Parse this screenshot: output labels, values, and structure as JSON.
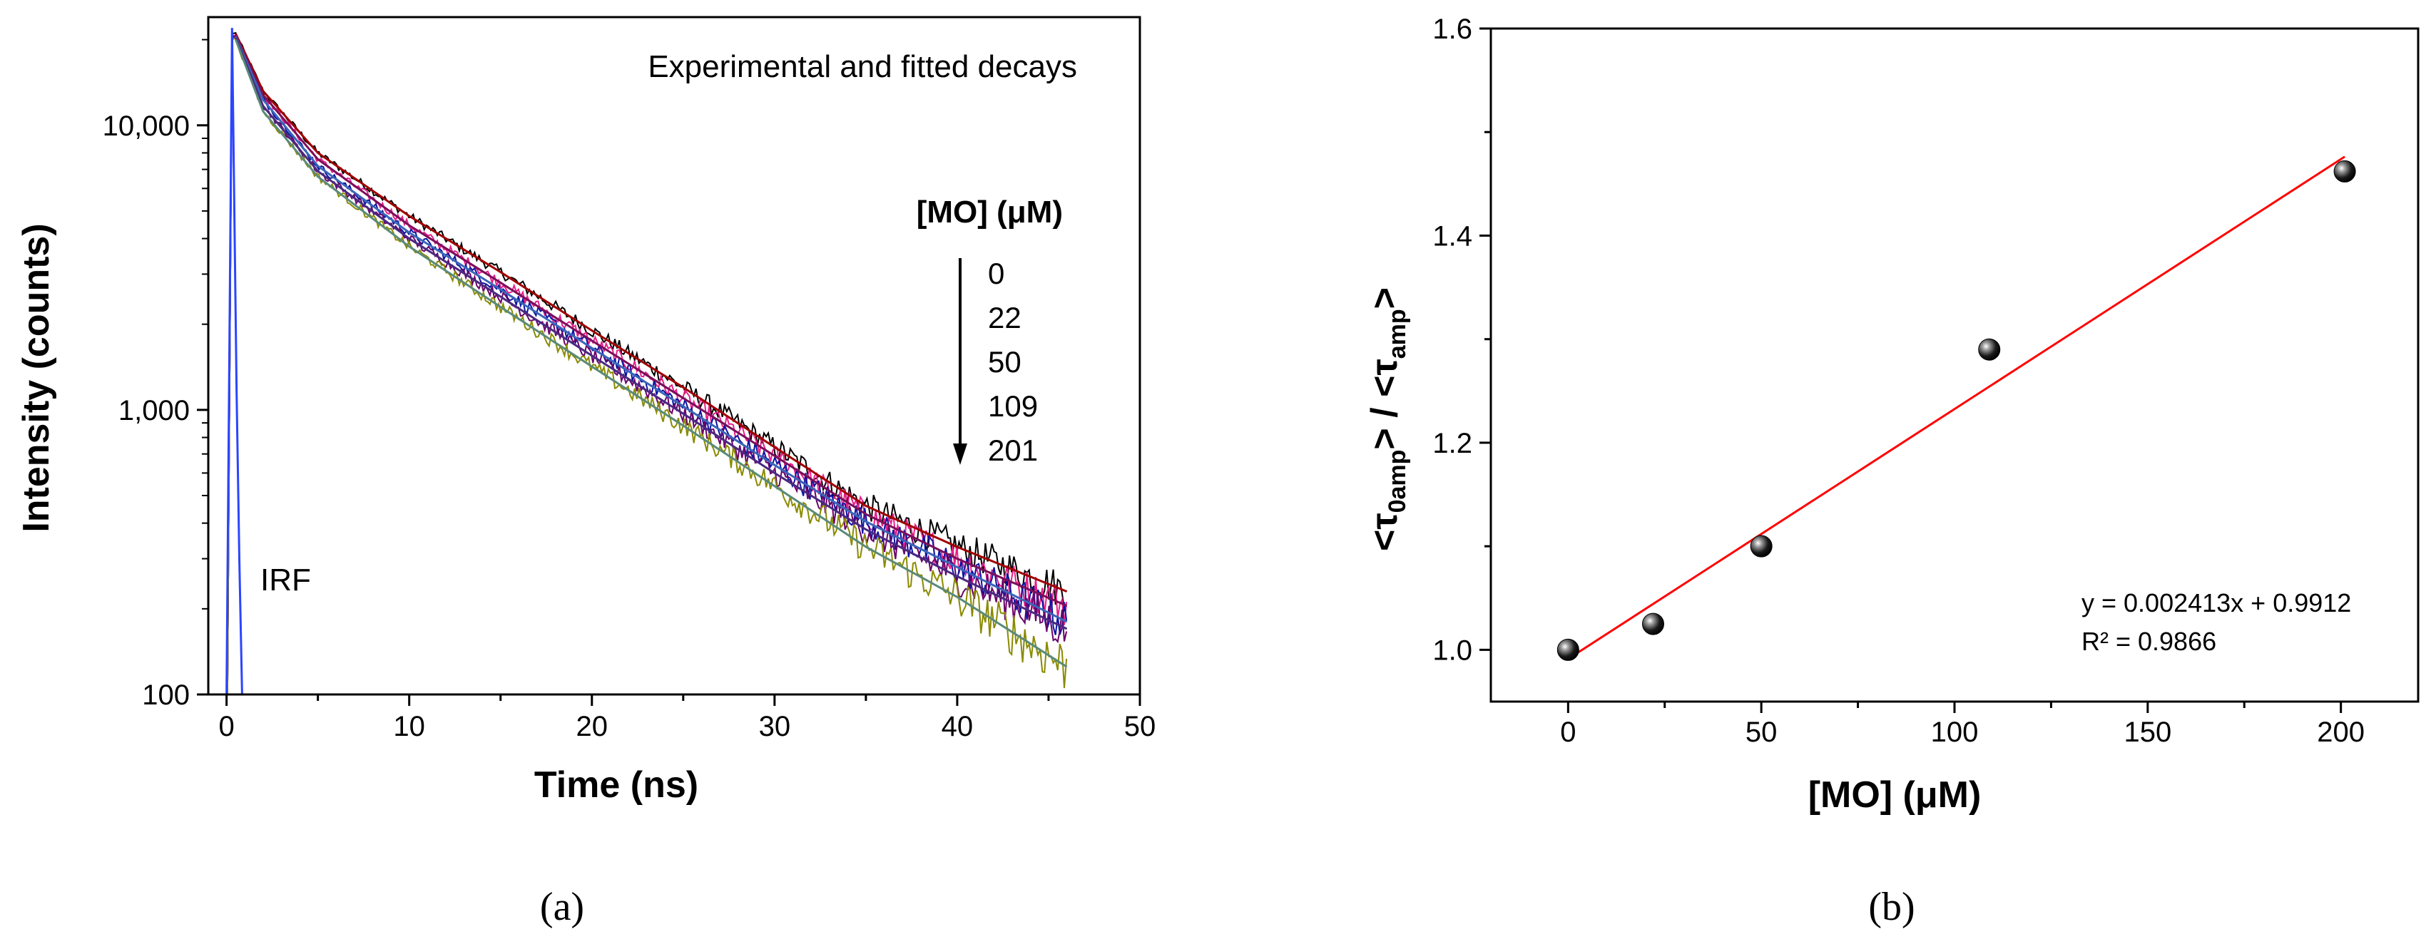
{
  "colors": {
    "axis": "#000000",
    "fit_line": "#ff0000",
    "marker": "#000000",
    "irf": "#2b45ff",
    "decay_colors": [
      "#000000",
      "#e8208a",
      "#0a14a0",
      "#6a006a",
      "#8a8a00"
    ],
    "fit_colors": [
      "#a00000",
      "#7a0f5a",
      "#3a66b8",
      "#4a2a80",
      "#5a8a7a"
    ]
  },
  "chart_data": [
    {
      "id": "a",
      "type": "line",
      "panel_label": "(a)",
      "title": "Experimental and fitted decays",
      "xlabel": "Time (ns)",
      "ylabel": "Intensity (counts)",
      "xlim": [
        -1,
        50
      ],
      "ylim": [
        100,
        24000
      ],
      "yscale": "log",
      "x_ticks": [
        0,
        10,
        20,
        30,
        40,
        50
      ],
      "x_tick_labels": [
        "0",
        "10",
        "20",
        "30",
        "40",
        "50"
      ],
      "y_ticks": [
        100,
        1000,
        10000
      ],
      "y_tick_labels": [
        "100",
        "1,000",
        "10,000"
      ],
      "legend_title": "[MO] (μM)",
      "legend_entries": [
        "0",
        "22",
        "50",
        "109",
        "201"
      ],
      "irf_label": "IRF",
      "series": [
        {
          "name": "0",
          "peak": 21000,
          "values": [
            [
              0.5,
              21000
            ],
            [
              2,
              13200
            ],
            [
              5,
              8000
            ],
            [
              10,
              4800
            ],
            [
              15,
              3050
            ],
            [
              20,
              1900
            ],
            [
              25,
              1200
            ],
            [
              30,
              740
            ],
            [
              35,
              460
            ],
            [
              40,
              330
            ],
            [
              46,
              230
            ]
          ]
        },
        {
          "name": "22",
          "peak": 20800,
          "values": [
            [
              0.5,
              20800
            ],
            [
              2,
              12800
            ],
            [
              5,
              7600
            ],
            [
              10,
              4450
            ],
            [
              15,
              2800
            ],
            [
              20,
              1750
            ],
            [
              25,
              1100
            ],
            [
              30,
              690
            ],
            [
              35,
              430
            ],
            [
              40,
              300
            ],
            [
              46,
              205
            ]
          ]
        },
        {
          "name": "50",
          "peak": 20500,
          "values": [
            [
              0.5,
              20500
            ],
            [
              2,
              12300
            ],
            [
              5,
              7200
            ],
            [
              10,
              4200
            ],
            [
              15,
              2650
            ],
            [
              20,
              1650
            ],
            [
              25,
              1030
            ],
            [
              30,
              640
            ],
            [
              35,
              405
            ],
            [
              40,
              280
            ],
            [
              46,
              180
            ]
          ]
        },
        {
          "name": "109",
          "peak": 20300,
          "values": [
            [
              0.5,
              20300
            ],
            [
              2,
              11700
            ],
            [
              5,
              6900
            ],
            [
              10,
              4000
            ],
            [
              15,
              2500
            ],
            [
              20,
              1550
            ],
            [
              25,
              970
            ],
            [
              30,
              600
            ],
            [
              35,
              380
            ],
            [
              40,
              260
            ],
            [
              46,
              170
            ]
          ]
        },
        {
          "name": "201",
          "peak": 20000,
          "values": [
            [
              0.5,
              20000
            ],
            [
              2,
              11200
            ],
            [
              5,
              6600
            ],
            [
              10,
              3750
            ],
            [
              15,
              2300
            ],
            [
              20,
              1420
            ],
            [
              25,
              880
            ],
            [
              30,
              540
            ],
            [
              35,
              330
            ],
            [
              40,
              220
            ],
            [
              46,
              125
            ]
          ]
        }
      ],
      "irf": {
        "name": "IRF",
        "values": [
          [
            0.0,
            100
          ],
          [
            0.3,
            22000
          ],
          [
            0.55,
            1150
          ],
          [
            0.7,
            300
          ],
          [
            0.85,
            100
          ]
        ]
      }
    },
    {
      "id": "b",
      "type": "scatter",
      "panel_label": "(b)",
      "xlabel": "[MO] (μM)",
      "ylabel": "<τ0amp> / <τamp>",
      "xlim": [
        -20,
        220
      ],
      "ylim": [
        0.95,
        1.6
      ],
      "x_ticks": [
        0,
        50,
        100,
        150,
        200
      ],
      "x_tick_labels": [
        "0",
        "50",
        "100",
        "150",
        "200"
      ],
      "y_ticks": [
        1.0,
        1.2,
        1.4,
        1.6
      ],
      "y_tick_labels": [
        "1.0",
        "1.2",
        "1.4",
        "1.6"
      ],
      "points": [
        [
          0,
          1.0
        ],
        [
          22,
          1.025
        ],
        [
          50,
          1.1
        ],
        [
          109,
          1.29
        ],
        [
          201,
          1.462
        ]
      ],
      "fit": {
        "slope": 0.002413,
        "intercept": 0.9912,
        "x_range": [
          0,
          201
        ]
      },
      "equation": "y = 0.002413x + 0.9912",
      "r2_label": "R² = 0.9866"
    }
  ]
}
